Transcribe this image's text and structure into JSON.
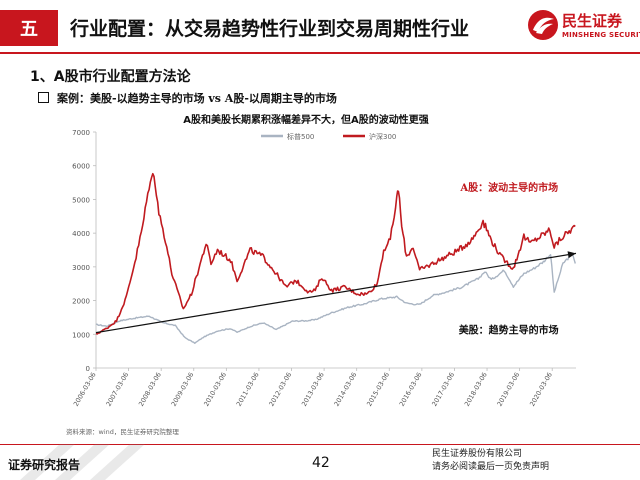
{
  "header": {
    "section_number": "五",
    "title": "行业配置：从交易趋势性行业到交易周期性行业",
    "logo_cn": "民生证券",
    "logo_en": "MINSHENG SECURITIES",
    "accent_color": "#c8161e"
  },
  "subtitle": "1、A股市行业配置方法论",
  "case_line": "案例：美股-以趋势主导的市场 vs A股-以周期主导的市场",
  "chart_data": {
    "type": "line",
    "title": "A股和美股长期累积涨幅差异不大，但A股的波动性更强",
    "ylim": [
      0,
      7000
    ],
    "y_ticks": [
      0,
      1000,
      2000,
      3000,
      4000,
      5000,
      6000,
      7000
    ],
    "x_ticks": [
      "2006-03-06",
      "2007-03-06",
      "2008-03-06",
      "2009-03-06",
      "2010-03-06",
      "2011-03-06",
      "2012-03-06",
      "2013-03-06",
      "2014-03-06",
      "2015-03-06",
      "2016-03-06",
      "2017-03-06",
      "2018-03-06",
      "2019-03-06",
      "2020-03-06"
    ],
    "x_range": [
      2006.17,
      2020.9
    ],
    "legend_placement": "top-center",
    "grid": false,
    "series": [
      {
        "name": "标普500",
        "color": "#a9b4c2",
        "points": [
          [
            2006.17,
            1290
          ],
          [
            2006.5,
            1240
          ],
          [
            2006.9,
            1400
          ],
          [
            2007.3,
            1470
          ],
          [
            2007.8,
            1540
          ],
          [
            2008.2,
            1350
          ],
          [
            2008.6,
            1260
          ],
          [
            2008.9,
            900
          ],
          [
            2009.2,
            740
          ],
          [
            2009.5,
            930
          ],
          [
            2009.9,
            1100
          ],
          [
            2010.3,
            1170
          ],
          [
            2010.5,
            1060
          ],
          [
            2010.9,
            1230
          ],
          [
            2011.3,
            1340
          ],
          [
            2011.7,
            1140
          ],
          [
            2012.2,
            1390
          ],
          [
            2012.6,
            1400
          ],
          [
            2012.9,
            1430
          ],
          [
            2013.4,
            1640
          ],
          [
            2013.9,
            1800
          ],
          [
            2014.4,
            1900
          ],
          [
            2014.9,
            2050
          ],
          [
            2015.4,
            2110
          ],
          [
            2015.7,
            1920
          ],
          [
            2016.1,
            1880
          ],
          [
            2016.5,
            2150
          ],
          [
            2016.9,
            2250
          ],
          [
            2017.4,
            2400
          ],
          [
            2017.9,
            2650
          ],
          [
            2018.1,
            2860
          ],
          [
            2018.3,
            2620
          ],
          [
            2018.7,
            2900
          ],
          [
            2018.98,
            2420
          ],
          [
            2019.3,
            2800
          ],
          [
            2019.6,
            2950
          ],
          [
            2019.9,
            3150
          ],
          [
            2020.12,
            3380
          ],
          [
            2020.23,
            2240
          ],
          [
            2020.5,
            3100
          ],
          [
            2020.8,
            3400
          ],
          [
            2020.88,
            3100
          ]
        ]
      },
      {
        "name": "沪深300",
        "color": "#c01a1f",
        "points": [
          [
            2006.17,
            1000
          ],
          [
            2006.5,
            1180
          ],
          [
            2006.8,
            1400
          ],
          [
            2007.1,
            2100
          ],
          [
            2007.4,
            3300
          ],
          [
            2007.6,
            4200
          ],
          [
            2007.8,
            5400
          ],
          [
            2007.95,
            5800
          ],
          [
            2008.1,
            4600
          ],
          [
            2008.3,
            3800
          ],
          [
            2008.5,
            2800
          ],
          [
            2008.7,
            2200
          ],
          [
            2008.85,
            1750
          ],
          [
            2009.1,
            2200
          ],
          [
            2009.4,
            3200
          ],
          [
            2009.55,
            3700
          ],
          [
            2009.7,
            3100
          ],
          [
            2009.9,
            3500
          ],
          [
            2010.3,
            3200
          ],
          [
            2010.5,
            2600
          ],
          [
            2010.9,
            3500
          ],
          [
            2011.3,
            3300
          ],
          [
            2011.7,
            2800
          ],
          [
            2012.0,
            2400
          ],
          [
            2012.3,
            2600
          ],
          [
            2012.7,
            2250
          ],
          [
            2012.9,
            2300
          ],
          [
            2013.1,
            2700
          ],
          [
            2013.4,
            2300
          ],
          [
            2013.8,
            2400
          ],
          [
            2014.2,
            2200
          ],
          [
            2014.5,
            2200
          ],
          [
            2014.8,
            2500
          ],
          [
            2015.0,
            3500
          ],
          [
            2015.2,
            3800
          ],
          [
            2015.4,
            5000
          ],
          [
            2015.45,
            5350
          ],
          [
            2015.55,
            4200
          ],
          [
            2015.7,
            3300
          ],
          [
            2015.9,
            3600
          ],
          [
            2016.1,
            2900
          ],
          [
            2016.5,
            3100
          ],
          [
            2016.9,
            3300
          ],
          [
            2017.3,
            3500
          ],
          [
            2017.7,
            3800
          ],
          [
            2018.05,
            4350
          ],
          [
            2018.3,
            3800
          ],
          [
            2018.6,
            3300
          ],
          [
            2018.98,
            2950
          ],
          [
            2019.3,
            3900
          ],
          [
            2019.5,
            3700
          ],
          [
            2019.8,
            3900
          ],
          [
            2020.1,
            4100
          ],
          [
            2020.23,
            3600
          ],
          [
            2020.5,
            3900
          ],
          [
            2020.88,
            4200
          ]
        ]
      }
    ],
    "trend_arrow": {
      "from": [
        2006.17,
        1050
      ],
      "to": [
        2020.9,
        3400
      ]
    },
    "annotations": [
      {
        "text": "A股：波动主导的市场",
        "x": 2017.35,
        "y": 5250,
        "color": "#c01a1f"
      },
      {
        "text": "美股：趋势主导的市场",
        "x": 2017.3,
        "y": 1020,
        "color": "#111111"
      }
    ],
    "source": "资料来源：wind，民生证券研究院整理"
  },
  "footer": {
    "left": "证券研究报告",
    "page": "42",
    "right_line1": "民生证券股份有限公司",
    "right_line2": "请务必阅读最后一页免责声明"
  }
}
